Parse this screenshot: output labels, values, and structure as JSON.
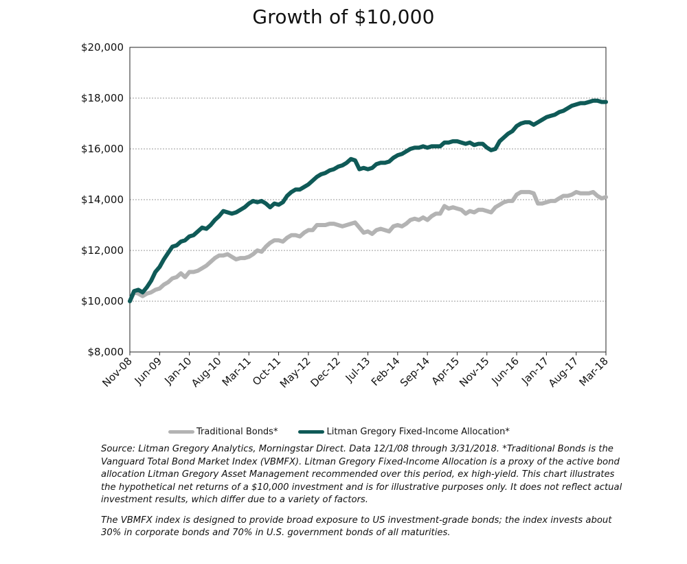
{
  "chart_data": {
    "type": "line",
    "title": "Growth of $10,000",
    "xlabel": "",
    "ylabel": "",
    "ylim": [
      8000,
      20000
    ],
    "y_ticks": [
      "$8,000",
      "$10,000",
      "$12,000",
      "$14,000",
      "$16,000",
      "$18,000",
      "$20,000"
    ],
    "y_tick_values": [
      8000,
      10000,
      12000,
      14000,
      16000,
      18000,
      20000
    ],
    "x_tick_labels": [
      "Nov-08",
      "Jun-09",
      "Jan-10",
      "Aug-10",
      "Mar-11",
      "Oct-11",
      "May-12",
      "Dec-12",
      "Jul-13",
      "Feb-14",
      "Sep-14",
      "Apr-15",
      "Nov-15",
      "Jun-16",
      "Jan-17",
      "Aug-17",
      "Mar-18"
    ],
    "x_start": "2008-11",
    "x_end": "2018-03",
    "grid": true,
    "legend_position": "bottom",
    "series": [
      {
        "name": "Traditional Bonds*",
        "color": "#b3b3b3",
        "points": [
          [
            "2008-11",
            10000
          ],
          [
            "2008-12",
            10350
          ],
          [
            "2009-01",
            10300
          ],
          [
            "2009-02",
            10200
          ],
          [
            "2009-03",
            10300
          ],
          [
            "2009-04",
            10350
          ],
          [
            "2009-05",
            10450
          ],
          [
            "2009-06",
            10500
          ],
          [
            "2009-07",
            10650
          ],
          [
            "2009-08",
            10750
          ],
          [
            "2009-09",
            10900
          ],
          [
            "2009-10",
            10950
          ],
          [
            "2009-11",
            11100
          ],
          [
            "2009-12",
            10950
          ],
          [
            "2010-01",
            11150
          ],
          [
            "2010-02",
            11150
          ],
          [
            "2010-03",
            11200
          ],
          [
            "2010-04",
            11300
          ],
          [
            "2010-05",
            11400
          ],
          [
            "2010-06",
            11550
          ],
          [
            "2010-07",
            11700
          ],
          [
            "2010-08",
            11800
          ],
          [
            "2010-09",
            11800
          ],
          [
            "2010-10",
            11850
          ],
          [
            "2010-11",
            11750
          ],
          [
            "2010-12",
            11650
          ],
          [
            "2011-01",
            11700
          ],
          [
            "2011-02",
            11700
          ],
          [
            "2011-03",
            11750
          ],
          [
            "2011-04",
            11850
          ],
          [
            "2011-05",
            12000
          ],
          [
            "2011-06",
            11950
          ],
          [
            "2011-07",
            12150
          ],
          [
            "2011-08",
            12300
          ],
          [
            "2011-09",
            12400
          ],
          [
            "2011-10",
            12400
          ],
          [
            "2011-11",
            12350
          ],
          [
            "2011-12",
            12500
          ],
          [
            "2012-01",
            12600
          ],
          [
            "2012-02",
            12600
          ],
          [
            "2012-03",
            12550
          ],
          [
            "2012-04",
            12700
          ],
          [
            "2012-05",
            12800
          ],
          [
            "2012-06",
            12800
          ],
          [
            "2012-07",
            13000
          ],
          [
            "2012-08",
            13000
          ],
          [
            "2012-09",
            13000
          ],
          [
            "2012-10",
            13050
          ],
          [
            "2012-11",
            13050
          ],
          [
            "2012-12",
            13000
          ],
          [
            "2013-01",
            12950
          ],
          [
            "2013-02",
            13000
          ],
          [
            "2013-03",
            13050
          ],
          [
            "2013-04",
            13100
          ],
          [
            "2013-05",
            12900
          ],
          [
            "2013-06",
            12700
          ],
          [
            "2013-07",
            12750
          ],
          [
            "2013-08",
            12650
          ],
          [
            "2013-09",
            12800
          ],
          [
            "2013-10",
            12850
          ],
          [
            "2013-11",
            12800
          ],
          [
            "2013-12",
            12750
          ],
          [
            "2014-01",
            12950
          ],
          [
            "2014-02",
            13000
          ],
          [
            "2014-03",
            12950
          ],
          [
            "2014-04",
            13050
          ],
          [
            "2014-05",
            13200
          ],
          [
            "2014-06",
            13250
          ],
          [
            "2014-07",
            13200
          ],
          [
            "2014-08",
            13300
          ],
          [
            "2014-09",
            13200
          ],
          [
            "2014-10",
            13350
          ],
          [
            "2014-11",
            13450
          ],
          [
            "2014-12",
            13450
          ],
          [
            "2015-01",
            13750
          ],
          [
            "2015-02",
            13650
          ],
          [
            "2015-03",
            13700
          ],
          [
            "2015-04",
            13650
          ],
          [
            "2015-05",
            13600
          ],
          [
            "2015-06",
            13450
          ],
          [
            "2015-07",
            13550
          ],
          [
            "2015-08",
            13500
          ],
          [
            "2015-09",
            13600
          ],
          [
            "2015-10",
            13600
          ],
          [
            "2015-11",
            13550
          ],
          [
            "2015-12",
            13500
          ],
          [
            "2016-01",
            13700
          ],
          [
            "2016-02",
            13800
          ],
          [
            "2016-03",
            13900
          ],
          [
            "2016-04",
            13950
          ],
          [
            "2016-05",
            13950
          ],
          [
            "2016-06",
            14200
          ],
          [
            "2016-07",
            14300
          ],
          [
            "2016-08",
            14300
          ],
          [
            "2016-09",
            14300
          ],
          [
            "2016-10",
            14250
          ],
          [
            "2016-11",
            13850
          ],
          [
            "2016-12",
            13850
          ],
          [
            "2017-01",
            13900
          ],
          [
            "2017-02",
            13950
          ],
          [
            "2017-03",
            13950
          ],
          [
            "2017-04",
            14050
          ],
          [
            "2017-05",
            14150
          ],
          [
            "2017-06",
            14150
          ],
          [
            "2017-07",
            14200
          ],
          [
            "2017-08",
            14300
          ],
          [
            "2017-09",
            14250
          ],
          [
            "2017-10",
            14250
          ],
          [
            "2017-11",
            14250
          ],
          [
            "2017-12",
            14300
          ],
          [
            "2018-01",
            14150
          ],
          [
            "2018-02",
            14050
          ],
          [
            "2018-03",
            14100
          ]
        ]
      },
      {
        "name": "Litman Gregory Fixed-Income Allocation*",
        "color": "#0f5a57",
        "points": [
          [
            "2008-11",
            10000
          ],
          [
            "2008-12",
            10400
          ],
          [
            "2009-01",
            10450
          ],
          [
            "2009-02",
            10350
          ],
          [
            "2009-03",
            10550
          ],
          [
            "2009-04",
            10800
          ],
          [
            "2009-05",
            11150
          ],
          [
            "2009-06",
            11350
          ],
          [
            "2009-07",
            11650
          ],
          [
            "2009-08",
            11900
          ],
          [
            "2009-09",
            12150
          ],
          [
            "2009-10",
            12200
          ],
          [
            "2009-11",
            12350
          ],
          [
            "2009-12",
            12400
          ],
          [
            "2010-01",
            12550
          ],
          [
            "2010-02",
            12600
          ],
          [
            "2010-03",
            12750
          ],
          [
            "2010-04",
            12900
          ],
          [
            "2010-05",
            12850
          ],
          [
            "2010-06",
            13000
          ],
          [
            "2010-07",
            13200
          ],
          [
            "2010-08",
            13350
          ],
          [
            "2010-09",
            13550
          ],
          [
            "2010-10",
            13500
          ],
          [
            "2010-11",
            13450
          ],
          [
            "2010-12",
            13500
          ],
          [
            "2011-01",
            13600
          ],
          [
            "2011-02",
            13700
          ],
          [
            "2011-03",
            13850
          ],
          [
            "2011-04",
            13950
          ],
          [
            "2011-05",
            13900
          ],
          [
            "2011-06",
            13950
          ],
          [
            "2011-07",
            13850
          ],
          [
            "2011-08",
            13700
          ],
          [
            "2011-09",
            13850
          ],
          [
            "2011-10",
            13800
          ],
          [
            "2011-11",
            13900
          ],
          [
            "2011-12",
            14150
          ],
          [
            "2012-01",
            14300
          ],
          [
            "2012-02",
            14400
          ],
          [
            "2012-03",
            14400
          ],
          [
            "2012-04",
            14500
          ],
          [
            "2012-05",
            14600
          ],
          [
            "2012-06",
            14750
          ],
          [
            "2012-07",
            14900
          ],
          [
            "2012-08",
            15000
          ],
          [
            "2012-09",
            15050
          ],
          [
            "2012-10",
            15150
          ],
          [
            "2012-11",
            15200
          ],
          [
            "2012-12",
            15300
          ],
          [
            "2013-01",
            15350
          ],
          [
            "2013-02",
            15450
          ],
          [
            "2013-03",
            15600
          ],
          [
            "2013-04",
            15550
          ],
          [
            "2013-05",
            15200
          ],
          [
            "2013-06",
            15250
          ],
          [
            "2013-07",
            15200
          ],
          [
            "2013-08",
            15250
          ],
          [
            "2013-09",
            15400
          ],
          [
            "2013-10",
            15450
          ],
          [
            "2013-11",
            15450
          ],
          [
            "2013-12",
            15500
          ],
          [
            "2014-01",
            15650
          ],
          [
            "2014-02",
            15750
          ],
          [
            "2014-03",
            15800
          ],
          [
            "2014-04",
            15900
          ],
          [
            "2014-05",
            16000
          ],
          [
            "2014-06",
            16050
          ],
          [
            "2014-07",
            16050
          ],
          [
            "2014-08",
            16100
          ],
          [
            "2014-09",
            16050
          ],
          [
            "2014-10",
            16100
          ],
          [
            "2014-11",
            16100
          ],
          [
            "2014-12",
            16100
          ],
          [
            "2015-01",
            16250
          ],
          [
            "2015-02",
            16250
          ],
          [
            "2015-03",
            16300
          ],
          [
            "2015-04",
            16300
          ],
          [
            "2015-05",
            16250
          ],
          [
            "2015-06",
            16200
          ],
          [
            "2015-07",
            16250
          ],
          [
            "2015-08",
            16150
          ],
          [
            "2015-09",
            16200
          ],
          [
            "2015-10",
            16200
          ],
          [
            "2015-11",
            16050
          ],
          [
            "2015-12",
            15950
          ],
          [
            "2016-01",
            16000
          ],
          [
            "2016-02",
            16300
          ],
          [
            "2016-03",
            16450
          ],
          [
            "2016-04",
            16600
          ],
          [
            "2016-05",
            16700
          ],
          [
            "2016-06",
            16900
          ],
          [
            "2016-07",
            17000
          ],
          [
            "2016-08",
            17050
          ],
          [
            "2016-09",
            17050
          ],
          [
            "2016-10",
            16950
          ],
          [
            "2016-11",
            17050
          ],
          [
            "2016-12",
            17150
          ],
          [
            "2017-01",
            17250
          ],
          [
            "2017-02",
            17300
          ],
          [
            "2017-03",
            17350
          ],
          [
            "2017-04",
            17450
          ],
          [
            "2017-05",
            17500
          ],
          [
            "2017-06",
            17600
          ],
          [
            "2017-07",
            17700
          ],
          [
            "2017-08",
            17750
          ],
          [
            "2017-09",
            17800
          ],
          [
            "2017-10",
            17800
          ],
          [
            "2017-11",
            17850
          ],
          [
            "2017-12",
            17900
          ],
          [
            "2018-01",
            17900
          ],
          [
            "2018-02",
            17850
          ],
          [
            "2018-03",
            17850
          ]
        ]
      }
    ]
  },
  "legend": {
    "items": [
      {
        "label": "Traditional Bonds*",
        "color": "#b3b3b3"
      },
      {
        "label": "Litman Gregory Fixed-Income Allocation*",
        "color": "#0f5a57"
      }
    ]
  },
  "notes": {
    "source": "Source: Litman Gregory Analytics, Morningstar Direct. Data 12/1/08 through 3/31/2018. *Traditional Bonds is the Vanguard Total Bond Market Index (VBMFX). Litman Gregory Fixed-Income Allocation is a proxy of the active bond allocation Litman Gregory Asset Management recommended over this period, ex high-yield. This chart illustrates the hypothetical net returns of a $10,000 investment and is for illustrative purposes only. It does not reflect actual investment results, which differ due to a variety of factors.",
    "index_note": "The VBMFX index is designed to provide broad exposure to US investment-grade bonds; the index invests about 30% in corporate bonds and 70% in U.S. government bonds of all maturities."
  }
}
